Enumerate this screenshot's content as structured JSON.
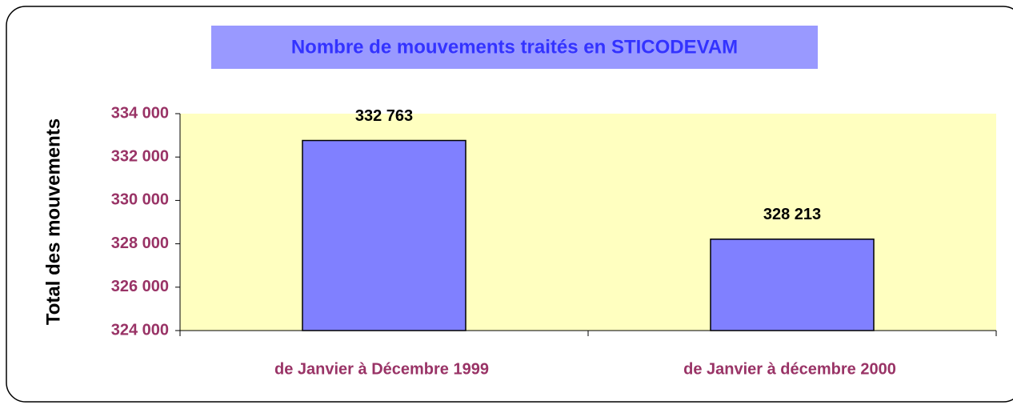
{
  "chart_data": {
    "type": "bar",
    "title": "Nombre de mouvements traités en STICODEVAM",
    "y_label": "Total des mouvements",
    "categories": [
      "de Janvier à Décembre 1999",
      "de Janvier à décembre 2000"
    ],
    "values": [
      332763,
      328213
    ],
    "value_labels": [
      "332 763",
      "328 213"
    ],
    "color": "#8080ff",
    "ylim": [
      324000,
      334000
    ],
    "yticks": [
      {
        "value": 324000,
        "label": "324 000"
      },
      {
        "value": 326000,
        "label": "326 000"
      },
      {
        "value": 328000,
        "label": "328 000"
      },
      {
        "value": 330000,
        "label": "330 000"
      },
      {
        "value": 332000,
        "label": "332 000"
      },
      {
        "value": 334000,
        "label": "334 000"
      }
    ]
  }
}
